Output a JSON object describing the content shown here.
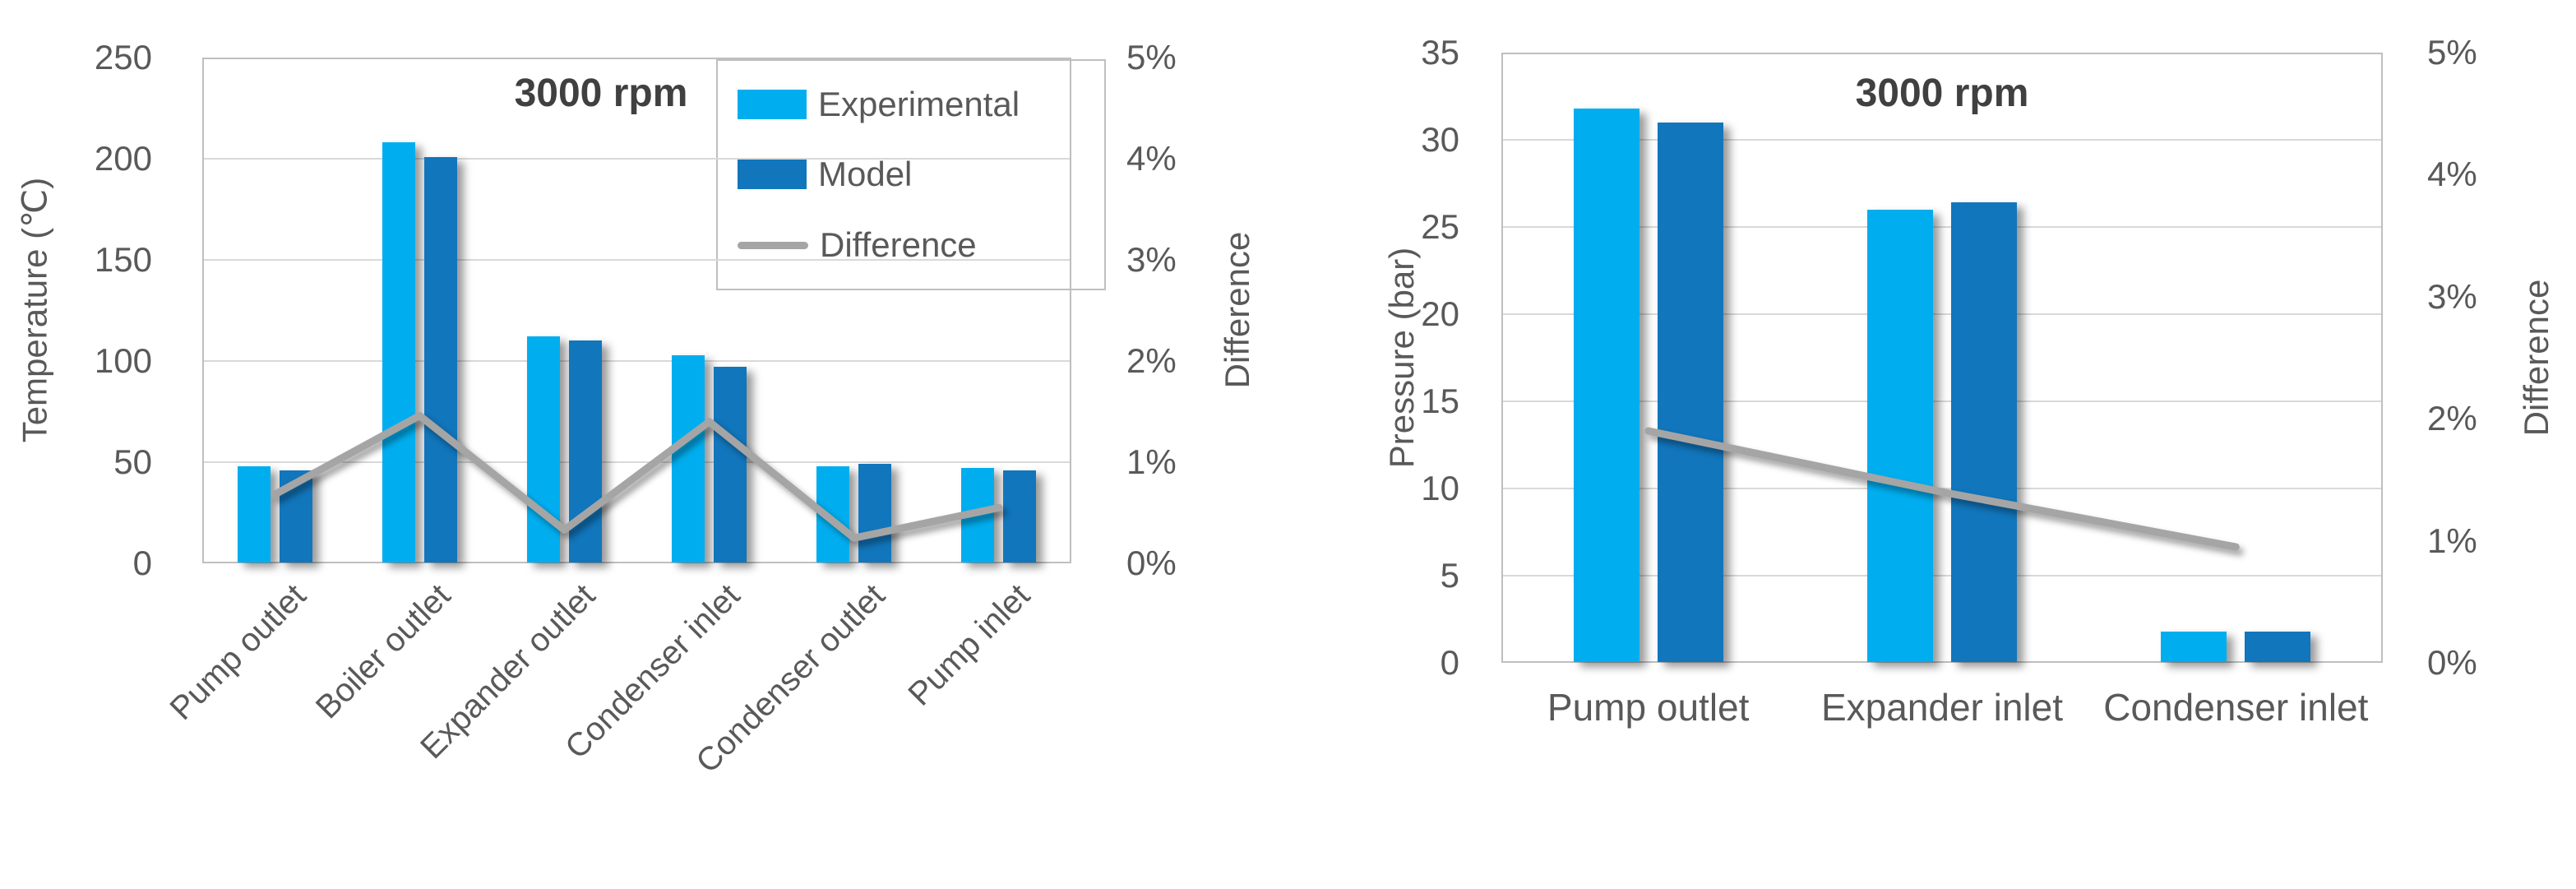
{
  "page": {
    "background": "#FFFFFF"
  },
  "colors": {
    "experimental": "#00AEEF",
    "model": "#1176BC",
    "difference": "#A5A5A5",
    "text": "#595959",
    "title": "#404040",
    "gridline": "#D9D9D9",
    "plot_border": "#BFBFBF"
  },
  "chart_data": [
    {
      "type": "bar",
      "subtype": "clustered bar + line combo, dual axis",
      "title": "3000 rpm",
      "ylabel": "Temperature (℃)",
      "y2label": "Difference",
      "xlabel": "",
      "categories": [
        "Pump outlet",
        "Boiler outlet",
        "Expander outlet",
        "Condenser inlet",
        "Condenser outlet",
        "Pump inlet"
      ],
      "series": [
        {
          "name": "Experimental",
          "type": "bar",
          "axis": "left",
          "values": [
            48,
            208,
            112,
            103,
            48,
            47
          ]
        },
        {
          "name": "Model",
          "type": "bar",
          "axis": "left",
          "values": [
            46,
            201,
            110,
            97,
            49,
            46
          ]
        },
        {
          "name": "Difference",
          "type": "line",
          "axis": "right",
          "values_percent": [
            0.68,
            1.46,
            0.33,
            1.4,
            0.25,
            0.55
          ]
        }
      ],
      "ylim": [
        0,
        250
      ],
      "ystep": 50,
      "y2lim_percent": [
        0,
        5
      ],
      "y2step_percent": 1,
      "grid": true,
      "legend": {
        "position": "top-right box",
        "entries": [
          "Experimental",
          "Model",
          "Difference"
        ]
      },
      "x_tick_rotation_deg": 45
    },
    {
      "type": "bar",
      "subtype": "clustered bar + line combo, dual axis",
      "title": "3000 rpm",
      "ylabel": "Pressure (bar)",
      "y2label": "Difference",
      "xlabel": "",
      "categories": [
        "Pump outlet",
        "Expander inlet",
        "Condenser inlet"
      ],
      "series": [
        {
          "name": "Experimental",
          "type": "bar",
          "axis": "left",
          "values": [
            31.8,
            26.0,
            1.8
          ]
        },
        {
          "name": "Model",
          "type": "bar",
          "axis": "left",
          "values": [
            31.0,
            26.4,
            1.8
          ]
        },
        {
          "name": "Difference",
          "type": "line",
          "axis": "right",
          "values_percent": [
            1.9,
            1.4,
            0.95
          ]
        }
      ],
      "ylim": [
        0,
        35
      ],
      "ystep": 5,
      "y2lim_percent": [
        0,
        5
      ],
      "y2step_percent": 1,
      "grid": true,
      "legend": {
        "position": "none",
        "entries": []
      },
      "x_tick_rotation_deg": 0
    }
  ]
}
